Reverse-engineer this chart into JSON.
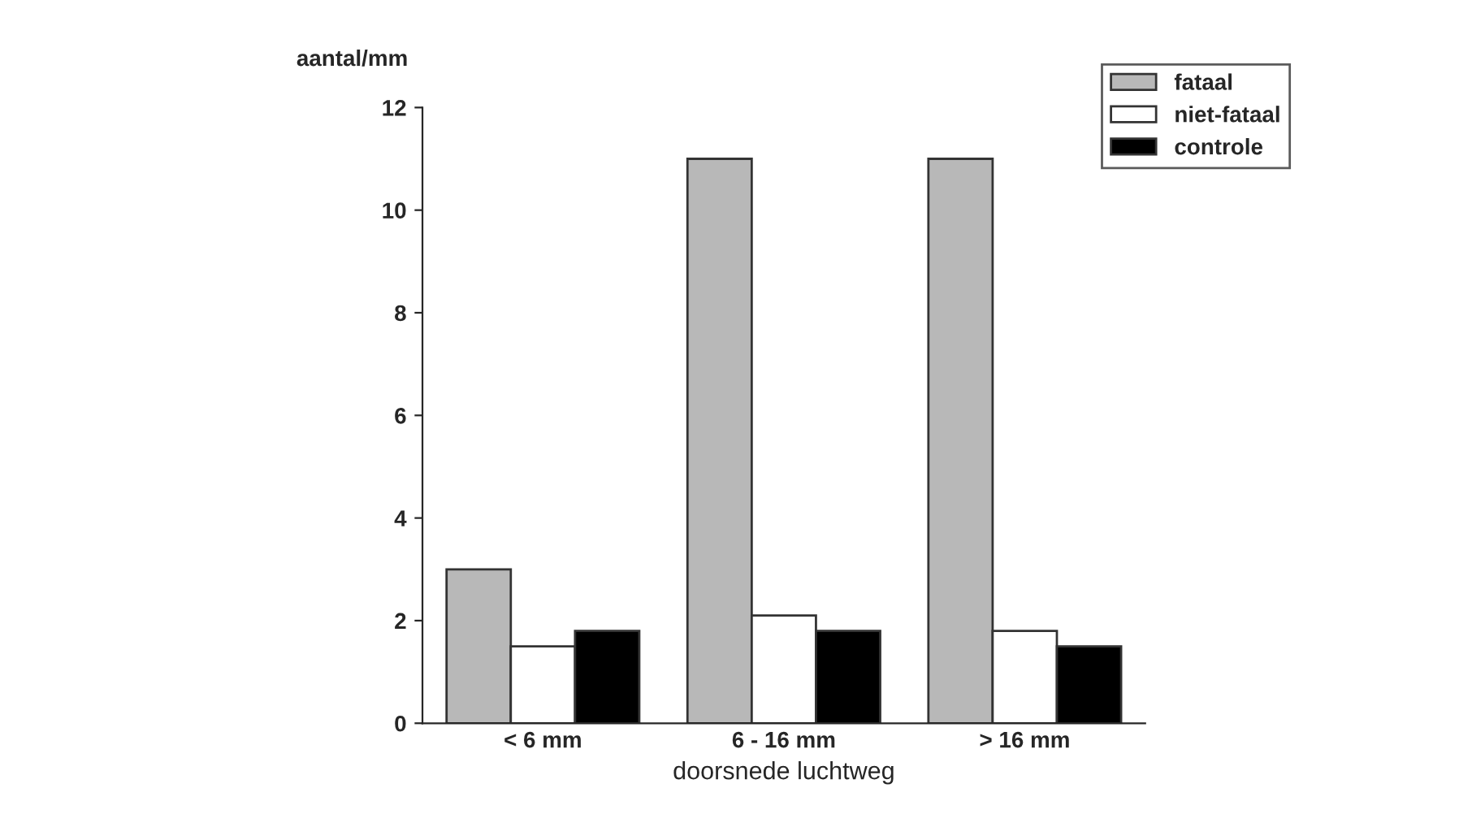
{
  "chart_data": {
    "type": "bar",
    "ylabel": "aantal/mm",
    "xlabel": "doorsnede luchtweg",
    "categories": [
      "< 6 mm",
      "6 - 16 mm",
      "> 16 mm"
    ],
    "series": [
      {
        "name": "fataal",
        "color": "#b8b8b8",
        "values": [
          3.0,
          11.0,
          11.0
        ]
      },
      {
        "name": "niet-fataal",
        "color": "#ffffff",
        "values": [
          1.5,
          2.1,
          1.8
        ]
      },
      {
        "name": "controle",
        "color": "#000000",
        "values": [
          1.8,
          1.8,
          1.5
        ]
      }
    ],
    "ylim": [
      0,
      12
    ],
    "yticks": [
      0,
      2,
      4,
      6,
      8,
      10,
      12
    ],
    "legend": "top right"
  }
}
